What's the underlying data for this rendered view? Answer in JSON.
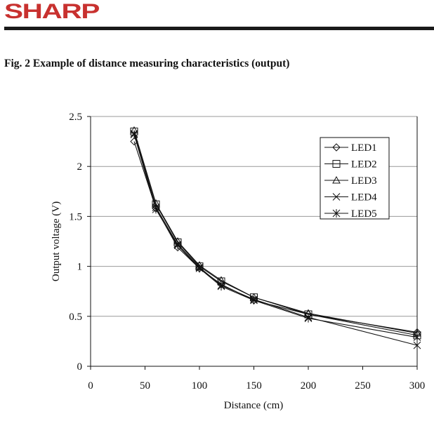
{
  "header": {
    "logo": "SHARP",
    "brand_color": "#c8312f"
  },
  "figure_title": "Fig. 2 Example of distance measuring characteristics (output)",
  "chart_data": {
    "type": "line",
    "title": "",
    "xlabel": "Distance (cm)",
    "ylabel": "Output voltage (V)",
    "xlim": [
      0,
      300
    ],
    "ylim": [
      0,
      2.5
    ],
    "xticks": [
      0,
      50,
      100,
      150,
      200,
      250,
      300
    ],
    "yticks": [
      0,
      0.5,
      1,
      1.5,
      2,
      2.5
    ],
    "xtick_labels": [
      "0",
      "50",
      "100",
      "150",
      "200",
      "250",
      "300"
    ],
    "ytick_labels": [
      "0",
      "0.5",
      "1",
      "1.5",
      "2",
      "2.5"
    ],
    "grid": "horizontal",
    "legend_placement": "top-right",
    "x": [
      40,
      60,
      80,
      100,
      120,
      150,
      200,
      300
    ],
    "series": [
      {
        "name": "LED1",
        "marker": "diamond",
        "values": [
          2.25,
          1.58,
          1.19,
          0.98,
          0.82,
          0.66,
          0.52,
          0.34
        ]
      },
      {
        "name": "LED2",
        "marker": "square",
        "values": [
          2.35,
          1.62,
          1.24,
          1.0,
          0.85,
          0.69,
          0.52,
          0.31
        ]
      },
      {
        "name": "LED3",
        "marker": "triangle",
        "values": [
          2.36,
          1.63,
          1.25,
          1.01,
          0.86,
          0.69,
          0.53,
          0.33
        ]
      },
      {
        "name": "LED4",
        "marker": "x",
        "values": [
          2.33,
          1.59,
          1.22,
          0.99,
          0.81,
          0.67,
          0.49,
          0.21
        ]
      },
      {
        "name": "LED5",
        "marker": "asterisk",
        "values": [
          2.32,
          1.57,
          1.21,
          0.98,
          0.8,
          0.66,
          0.48,
          0.29
        ]
      }
    ]
  }
}
